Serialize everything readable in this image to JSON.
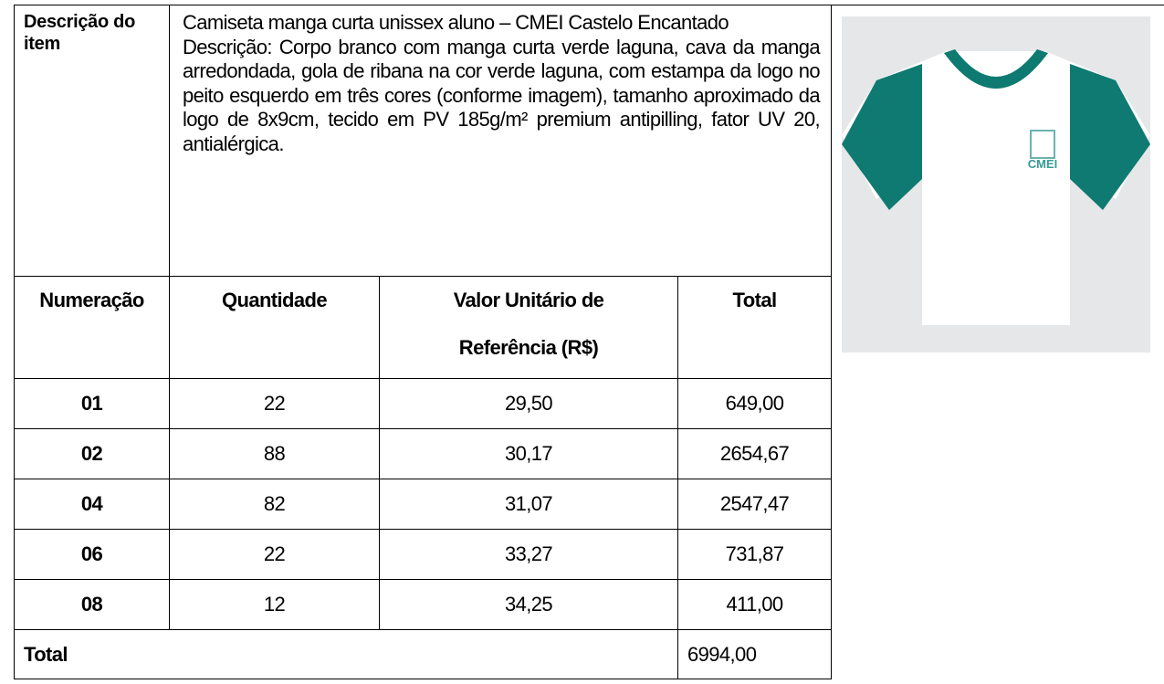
{
  "item": {
    "label": "Descrição do item",
    "name": "Camiseta manga curta unissex aluno – CMEI Castelo Encantado",
    "description": "Descrição: Corpo branco com manga curta verde laguna, cava da manga arredondada, gola de ribana na cor verde laguna, com estampa da logo no peito esquerdo em três cores (conforme imagem), tamanho aproximado da logo de 8x9cm, tecido em PV 185g/m² premium antipilling, fator UV 20, antialérgica."
  },
  "table": {
    "headers": [
      "Numeração",
      "Quantidade",
      "Valor Unitário de Referência (R$)",
      "Total"
    ],
    "rows": [
      [
        "01",
        "22",
        "29,50",
        "649,00"
      ],
      [
        "02",
        "88",
        "30,17",
        "2654,67"
      ],
      [
        "04",
        "82",
        "31,07",
        "2547,47"
      ],
      [
        "06",
        "22",
        "33,27",
        "731,87"
      ],
      [
        "08",
        "12",
        "34,25",
        "411,00"
      ]
    ],
    "total_label": "Total",
    "total_value": "6994,00"
  },
  "image": {
    "logo_text": "CMEI"
  }
}
